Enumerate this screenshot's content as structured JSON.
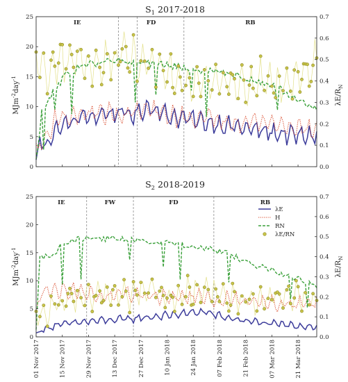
{
  "colors": {
    "le": "#3b3b9a",
    "h": "#d94a2b",
    "rn": "#3aa03a",
    "ratio_fill": "#c8c44a",
    "ratio_stroke": "#8e8a24",
    "ratio_line": "#e3e08a"
  },
  "chart_data": [
    {
      "type": "line",
      "title": {
        "main": "S",
        "sub": "1",
        "rest": " 2017-2018"
      },
      "ylabel": {
        "pre": "MJm",
        "e1": "-2",
        "mid": "day",
        "e2": "-1"
      },
      "y2label": {
        "pre": "λE/R",
        "sub": "N"
      },
      "ylim": [
        0,
        25
      ],
      "yticks": [
        "0",
        "5",
        "10",
        "15",
        "20",
        "25"
      ],
      "y2lim": [
        0,
        0.7
      ],
      "y2ticks": [
        "0.0",
        "0.1",
        "0.2",
        "0.3",
        "0.4",
        "0.5",
        "0.6",
        "0.7"
      ],
      "x_start": "2017-11-01",
      "x_end": "2018-03-31",
      "phases": [
        {
          "label": "IE",
          "from": "2017-11-01",
          "to": "2017-12-15"
        },
        {
          "label": "FD",
          "from": "2017-12-15",
          "to": "2018-01-19"
        },
        {
          "label": "RB",
          "from": "2018-01-19",
          "to": "2018-03-31"
        }
      ],
      "boundaries": [
        "2017-12-15",
        "2017-12-25",
        "2018-01-19"
      ],
      "series": [
        {
          "name": "λE",
          "style": "solid",
          "keypoints": [
            [
              0,
              0.8
            ],
            [
              2,
              4
            ],
            [
              6,
              3.8
            ],
            [
              10,
              6
            ],
            [
              15,
              7
            ],
            [
              20,
              7.5
            ],
            [
              25,
              8.5
            ],
            [
              30,
              8
            ],
            [
              35,
              9
            ],
            [
              40,
              8.8
            ],
            [
              45,
              9.2
            ],
            [
              50,
              8.5
            ],
            [
              55,
              9
            ],
            [
              60,
              10
            ],
            [
              65,
              9.5
            ],
            [
              70,
              8.5
            ],
            [
              80,
              8
            ],
            [
              90,
              7.5
            ],
            [
              100,
              7
            ],
            [
              110,
              6.5
            ],
            [
              120,
              6
            ],
            [
              130,
              5.5
            ],
            [
              140,
              5.2
            ],
            [
              150,
              5.2
            ]
          ],
          "amp": 1.6
        },
        {
          "name": "H",
          "style": "dotted",
          "keypoints": [
            [
              0,
              2.5
            ],
            [
              3,
              4
            ],
            [
              6,
              5
            ],
            [
              10,
              8
            ],
            [
              15,
              8.2
            ],
            [
              20,
              8.5
            ],
            [
              30,
              9
            ],
            [
              40,
              8.8
            ],
            [
              45,
              8.5
            ],
            [
              50,
              9
            ],
            [
              60,
              9.5
            ],
            [
              70,
              8.5
            ],
            [
              80,
              8.2
            ],
            [
              90,
              8
            ],
            [
              100,
              7.8
            ],
            [
              110,
              7.5
            ],
            [
              120,
              7.5
            ],
            [
              130,
              7
            ],
            [
              140,
              6.5
            ],
            [
              150,
              6
            ]
          ],
          "amp": 1.7
        },
        {
          "name": "RN",
          "style": "dashed",
          "keypoints": [
            [
              0,
              1
            ],
            [
              3,
              9
            ],
            [
              8,
              12
            ],
            [
              15,
              15
            ],
            [
              25,
              17
            ],
            [
              30,
              17.2
            ],
            [
              40,
              17.5
            ],
            [
              45,
              17.6
            ],
            [
              55,
              17.5
            ],
            [
              60,
              17.2
            ],
            [
              70,
              17
            ],
            [
              80,
              16.5
            ],
            [
              90,
              16
            ],
            [
              100,
              15.5
            ],
            [
              110,
              15
            ],
            [
              120,
              14
            ],
            [
              130,
              13
            ],
            [
              140,
              11
            ],
            [
              150,
              9.7
            ]
          ],
          "amp": 1.0
        },
        {
          "name": "λE/RN",
          "style": "markers",
          "keypoints": [
            [
              0,
              0.5
            ],
            [
              5,
              0.42
            ],
            [
              10,
              0.45
            ],
            [
              20,
              0.5
            ],
            [
              30,
              0.48
            ],
            [
              40,
              0.5
            ],
            [
              50,
              0.52
            ],
            [
              60,
              0.48
            ],
            [
              70,
              0.45
            ],
            [
              80,
              0.4
            ],
            [
              90,
              0.42
            ],
            [
              100,
              0.4
            ],
            [
              110,
              0.38
            ],
            [
              120,
              0.4
            ],
            [
              130,
              0.38
            ],
            [
              140,
              0.4
            ],
            [
              150,
              0.5
            ]
          ],
          "amp": 0.1
        }
      ]
    },
    {
      "type": "line",
      "title": {
        "main": "S",
        "sub": "2",
        "rest": " 2018-2019"
      },
      "ylabel": {
        "pre": "MJm",
        "e1": "-2",
        "mid": "day",
        "e2": "-1"
      },
      "y2label": {
        "pre": "λE/R",
        "sub": "N"
      },
      "ylim": [
        0,
        25
      ],
      "yticks": [
        "0",
        "5",
        "10",
        "15",
        "20",
        "25"
      ],
      "y2lim": [
        0,
        0.7
      ],
      "y2ticks": [
        "0.0",
        "0.1",
        "0.2",
        "0.3",
        "0.4",
        "0.5",
        "0.6",
        "0.7"
      ],
      "x_start": "2017-11-01",
      "x_end": "2018-03-31",
      "phases": [
        {
          "label": "IE",
          "from": "2017-11-01",
          "to": "2017-11-28"
        },
        {
          "label": "FW",
          "from": "2017-11-28",
          "to": "2017-12-23"
        },
        {
          "label": "FD",
          "from": "2017-12-23",
          "to": "2018-02-04"
        },
        {
          "label": "RB",
          "from": "2018-02-04",
          "to": "2018-03-31"
        }
      ],
      "boundaries": [
        "2017-11-28",
        "2017-12-23",
        "2018-02-04"
      ],
      "xticks": [
        "01 Nov 2017",
        "15 Nov 2017",
        "29 Nov 2017",
        "13 Dec 2017",
        "27 Dec 2017",
        "10 Jan 2018",
        "24 Jan 2018",
        "07 Feb 2018",
        "21 Feb 2018",
        "07 Mar 2018",
        "21 Mar 2018"
      ],
      "legend": [
        "λE",
        "H",
        "RN",
        "λE/RN"
      ],
      "series": [
        {
          "name": "λE",
          "style": "solid",
          "keypoints": [
            [
              0,
              0.5
            ],
            [
              5,
              1.5
            ],
            [
              10,
              2
            ],
            [
              20,
              2.5
            ],
            [
              30,
              2.8
            ],
            [
              40,
              3
            ],
            [
              50,
              3.2
            ],
            [
              60,
              3.5
            ],
            [
              70,
              3.8
            ],
            [
              80,
              4.2
            ],
            [
              90,
              4.5
            ],
            [
              100,
              3.5
            ],
            [
              110,
              3
            ],
            [
              120,
              2.5
            ],
            [
              130,
              2.2
            ],
            [
              140,
              2
            ],
            [
              150,
              1.8
            ]
          ],
          "amp": 0.7
        },
        {
          "name": "H",
          "style": "dotted",
          "keypoints": [
            [
              0,
              3
            ],
            [
              3,
              9
            ],
            [
              8,
              8
            ],
            [
              15,
              8.5
            ],
            [
              25,
              8
            ],
            [
              30,
              7.5
            ],
            [
              40,
              7
            ],
            [
              50,
              7.5
            ],
            [
              60,
              7.5
            ],
            [
              70,
              7
            ],
            [
              80,
              7
            ],
            [
              90,
              7
            ],
            [
              100,
              6.5
            ],
            [
              110,
              6.5
            ],
            [
              120,
              6.5
            ],
            [
              130,
              6
            ],
            [
              140,
              6
            ],
            [
              150,
              6
            ]
          ],
          "amp": 1.5
        },
        {
          "name": "RN",
          "style": "dashed",
          "keypoints": [
            [
              0,
              1
            ],
            [
              2,
              14
            ],
            [
              10,
              15
            ],
            [
              15,
              17
            ],
            [
              25,
              17.5
            ],
            [
              35,
              17.5
            ],
            [
              45,
              17.5
            ],
            [
              55,
              17.2
            ],
            [
              65,
              17
            ],
            [
              75,
              16.5
            ],
            [
              85,
              16
            ],
            [
              95,
              15.5
            ],
            [
              105,
              14.5
            ],
            [
              115,
              13
            ],
            [
              125,
              12
            ],
            [
              135,
              11
            ],
            [
              145,
              9.5
            ],
            [
              150,
              9
            ]
          ],
          "amp": 0.9
        },
        {
          "name": "λE/RN",
          "style": "markers",
          "keypoints": [
            [
              0,
              0.1
            ],
            [
              5,
              0.12
            ],
            [
              10,
              0.15
            ],
            [
              20,
              0.2
            ],
            [
              30,
              0.2
            ],
            [
              40,
              0.22
            ],
            [
              50,
              0.2
            ],
            [
              60,
              0.25
            ],
            [
              70,
              0.2
            ],
            [
              80,
              0.22
            ],
            [
              90,
              0.25
            ],
            [
              100,
              0.2
            ],
            [
              110,
              0.18
            ],
            [
              120,
              0.18
            ],
            [
              130,
              0.2
            ],
            [
              140,
              0.2
            ],
            [
              150,
              0.18
            ]
          ],
          "amp": 0.07
        }
      ]
    }
  ]
}
